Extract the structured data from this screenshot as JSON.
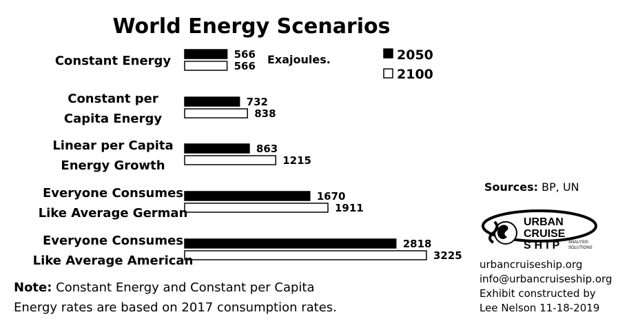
{
  "chart_data": {
    "type": "bar",
    "orientation": "horizontal",
    "title": "World Energy Scenarios",
    "unit_label": "Exajoules.",
    "categories": [
      [
        "Constant Energy"
      ],
      [
        "Constant per",
        "Capita Energy"
      ],
      [
        "Linear per Capita",
        "Energy Growth"
      ],
      [
        "Everyone Consumes",
        "Like Average German"
      ],
      [
        "Everyone Consumes",
        "Like Average American"
      ]
    ],
    "series": [
      {
        "name": "2050",
        "color": "#000000",
        "values": [
          566,
          732,
          863,
          1670,
          2818
        ]
      },
      {
        "name": "2100",
        "color": "#ffffff",
        "values": [
          566,
          838,
          1215,
          1911,
          3225
        ]
      }
    ],
    "legend_position": "top-right",
    "grid": false
  },
  "sources": {
    "label": "Sources:",
    "text": " BP, UN"
  },
  "logo": {
    "line1": "URBAN",
    "line2": "CRUISE",
    "line3": "SHIP",
    "tag1": "ANALYSIS",
    "tag2": "SOLUTIONS"
  },
  "contact": {
    "website": "urbancruiseship.org",
    "email": "info@urbancruiseship.org",
    "credit1": "Exhibit constructed by",
    "credit2": "Lee Nelson 11-18-2019"
  },
  "note": {
    "label": "Note:",
    "line1_rest": " Constant Energy and Constant per Capita",
    "line2": "Energy rates are based on 2017 consumption rates."
  }
}
